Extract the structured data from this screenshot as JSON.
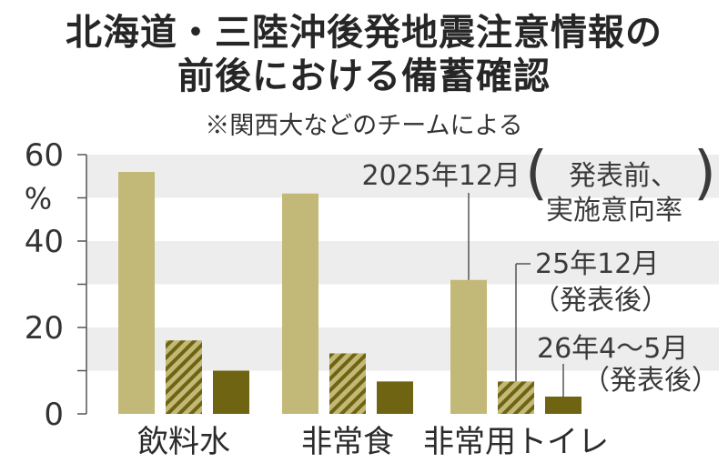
{
  "chart_data": {
    "type": "bar",
    "title": "北海道・三陸沖後発地震注意情報の前後における備蓄確認",
    "title_lines": [
      "北海道・三陸沖後発地震注意情報の",
      "前後における備蓄確認"
    ],
    "subtitle": "※関西大などのチームによる",
    "ylabel": "%",
    "ylim": [
      0,
      60
    ],
    "yticks": [
      0,
      20,
      40,
      60
    ],
    "grid": "horizontal bands",
    "categories": [
      "飲料水",
      "非常食",
      "非常用トイレ"
    ],
    "series": [
      {
        "name": "2025年12月（発表前、実施意向率）",
        "label_lines": [
          "2025年12月",
          "発表前、",
          "実施意向率"
        ],
        "values": [
          56,
          51,
          31
        ],
        "color": "#c2b978",
        "pattern": "solid"
      },
      {
        "name": "25年12月（発表後）",
        "label_lines": [
          "25年12月",
          "（発表後）"
        ],
        "values": [
          17,
          14,
          7.5
        ],
        "color": "#9a8c38",
        "pattern": "hatched"
      },
      {
        "name": "26年4～5月（発表後）",
        "label_lines": [
          "26年4～5月",
          "（発表後）"
        ],
        "values": [
          10,
          7.5,
          4
        ],
        "color": "#6e6411",
        "pattern": "solid"
      }
    ]
  }
}
